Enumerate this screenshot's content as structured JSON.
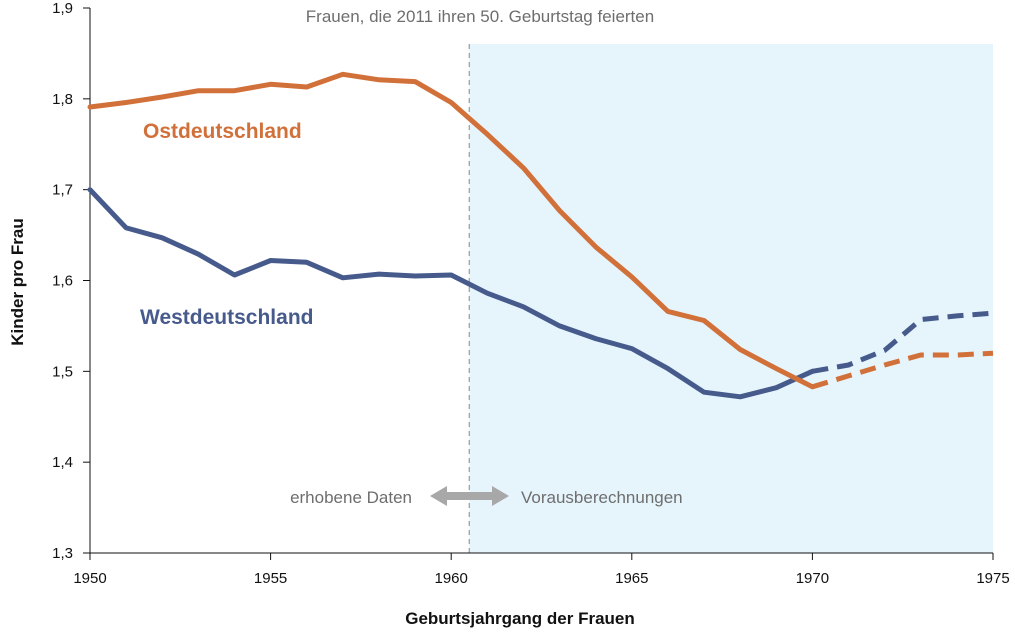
{
  "chart_data": {
    "type": "line",
    "title": "",
    "xlabel": "Geburtsjahrgang der Frauen",
    "ylabel": "Kinder pro Frau",
    "xlim": [
      1950,
      1975
    ],
    "ylim": [
      1.3,
      1.9
    ],
    "x_ticks": [
      1950,
      1955,
      1960,
      1965,
      1970,
      1975
    ],
    "y_ticks": [
      1.3,
      1.4,
      1.5,
      1.6,
      1.7,
      1.8,
      1.9
    ],
    "x_tick_labels": [
      "1950",
      "1955",
      "1960",
      "1965",
      "1970",
      "1975"
    ],
    "y_tick_labels": [
      "1,3",
      "1,4",
      "1,5",
      "1,6",
      "1,7",
      "1,8",
      "1,9"
    ],
    "grid": false,
    "annotations": {
      "vertical_line_label": "Frauen, die 2011 ihren 50. Geburtstag feierten",
      "observed_label": "erhobene Daten",
      "projected_label": "Vorausberechnungen"
    },
    "vertical_line_x": 1960.5,
    "projection_region": [
      1960.5,
      1975
    ],
    "colors": {
      "ost": "#d2703a",
      "west": "#465a8c",
      "projection_fill": "#e6f5fc",
      "divider": "#9a9a9a",
      "arrow": "#a8a8a8"
    },
    "series": [
      {
        "name": "Ostdeutschland",
        "solid": [
          [
            1950,
            1.791
          ],
          [
            1951,
            1.796
          ],
          [
            1952,
            1.802
          ],
          [
            1953,
            1.809
          ],
          [
            1954,
            1.809
          ],
          [
            1955,
            1.816
          ],
          [
            1956,
            1.813
          ],
          [
            1957,
            1.827
          ],
          [
            1958,
            1.821
          ],
          [
            1959,
            1.819
          ],
          [
            1960,
            1.796
          ],
          [
            1961,
            1.761
          ],
          [
            1962,
            1.724
          ],
          [
            1963,
            1.677
          ],
          [
            1964,
            1.637
          ],
          [
            1965,
            1.604
          ],
          [
            1966,
            1.566
          ],
          [
            1967,
            1.556
          ],
          [
            1968,
            1.524
          ],
          [
            1969,
            1.503
          ],
          [
            1970,
            1.483
          ]
        ],
        "dashed": [
          [
            1970,
            1.483
          ],
          [
            1971,
            1.495
          ],
          [
            1972,
            1.507
          ],
          [
            1973,
            1.518
          ],
          [
            1974,
            1.518
          ],
          [
            1975,
            1.52
          ]
        ]
      },
      {
        "name": "Westdeutschland",
        "solid": [
          [
            1950,
            1.7
          ],
          [
            1951,
            1.658
          ],
          [
            1952,
            1.647
          ],
          [
            1953,
            1.629
          ],
          [
            1954,
            1.606
          ],
          [
            1955,
            1.622
          ],
          [
            1956,
            1.62
          ],
          [
            1957,
            1.603
          ],
          [
            1958,
            1.607
          ],
          [
            1959,
            1.605
          ],
          [
            1960,
            1.606
          ],
          [
            1961,
            1.586
          ],
          [
            1962,
            1.571
          ],
          [
            1963,
            1.55
          ],
          [
            1964,
            1.536
          ],
          [
            1965,
            1.525
          ],
          [
            1966,
            1.503
          ],
          [
            1967,
            1.477
          ],
          [
            1968,
            1.472
          ],
          [
            1969,
            1.482
          ],
          [
            1970,
            1.5
          ]
        ],
        "dashed": [
          [
            1970,
            1.5
          ],
          [
            1971,
            1.507
          ],
          [
            1972,
            1.523
          ],
          [
            1973,
            1.557
          ],
          [
            1974,
            1.561
          ],
          [
            1975,
            1.564
          ]
        ]
      }
    ]
  }
}
